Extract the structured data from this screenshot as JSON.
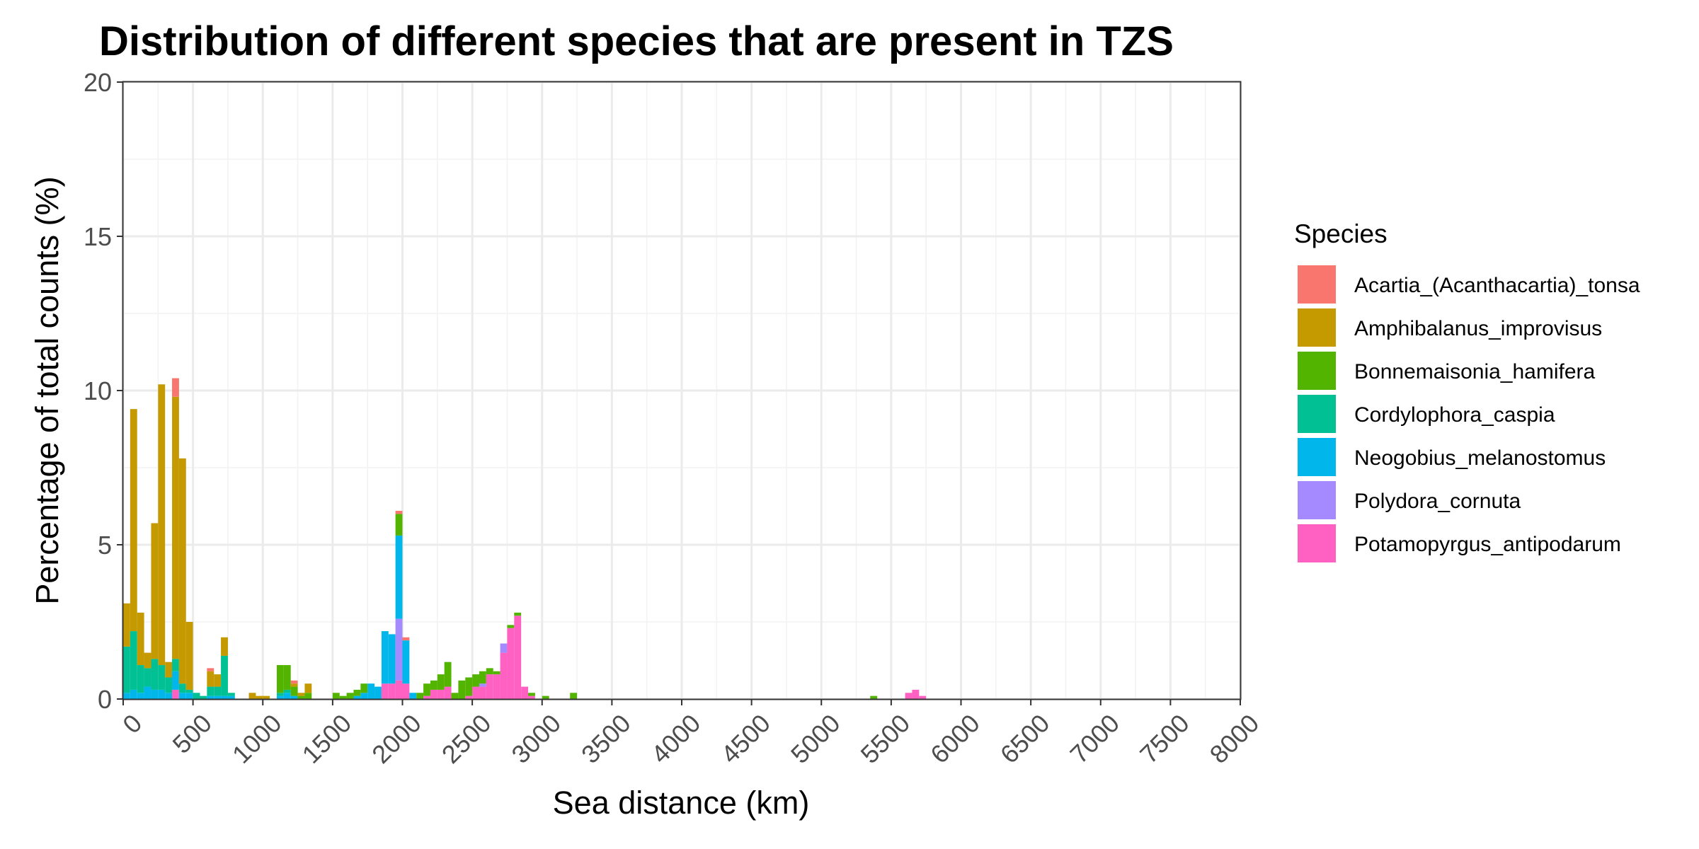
{
  "chart_data": {
    "type": "bar",
    "stacked": true,
    "title": "Distribution of different species that are present in TZS",
    "xlabel": "Sea distance (km)",
    "ylabel": "Percentage of total counts (%)",
    "xlim": [
      0,
      8000
    ],
    "ylim": [
      0,
      20
    ],
    "bin_width_km": 50,
    "x_ticks": [
      "0",
      "500",
      "1000",
      "1500",
      "2000",
      "2500",
      "3000",
      "3500",
      "4000",
      "4500",
      "5000",
      "5500",
      "6000",
      "6500",
      "7000",
      "7500",
      "8000"
    ],
    "y_ticks": [
      "0",
      "5",
      "10",
      "15",
      "20"
    ],
    "grid": true,
    "legend_position": "right",
    "legend_title": "Species",
    "x": [
      25,
      75,
      125,
      175,
      225,
      275,
      325,
      375,
      425,
      475,
      525,
      575,
      625,
      675,
      725,
      775,
      825,
      875,
      925,
      975,
      1025,
      1075,
      1125,
      1175,
      1225,
      1275,
      1325,
      1525,
      1575,
      1625,
      1675,
      1725,
      1775,
      1825,
      1875,
      1925,
      1975,
      2025,
      2075,
      2125,
      2175,
      2225,
      2275,
      2325,
      2375,
      2425,
      2475,
      2525,
      2575,
      2625,
      2675,
      2725,
      2775,
      2825,
      2875,
      2925,
      2975,
      3025,
      3225,
      5375,
      5625,
      5675,
      5725,
      5775
    ],
    "series": [
      {
        "name": "Potamopyrgus_antipodarum",
        "color": "#FF61C3",
        "values": [
          0,
          0,
          0,
          0,
          0,
          0,
          0,
          0.3,
          0,
          0,
          0,
          0,
          0,
          0,
          0,
          0,
          0,
          0,
          0,
          0,
          0,
          0,
          0,
          0,
          0,
          0,
          0,
          0,
          0,
          0,
          0,
          0,
          0,
          0,
          0.5,
          0.5,
          0.6,
          0.5,
          0,
          0,
          0.1,
          0.3,
          0.3,
          0.4,
          0,
          0,
          0.1,
          0.4,
          0.4,
          0.8,
          0.8,
          1.5,
          2.3,
          2.7,
          0.4,
          0.1,
          0,
          0,
          0,
          0,
          0.2,
          0.3,
          0.1,
          0
        ]
      },
      {
        "name": "Polydora_cornuta",
        "color": "#A58AFF",
        "values": [
          0,
          0,
          0,
          0,
          0,
          0,
          0,
          0,
          0,
          0,
          0,
          0,
          0,
          0,
          0,
          0,
          0,
          0,
          0,
          0,
          0,
          0,
          0,
          0,
          0,
          0,
          0,
          0,
          0,
          0,
          0,
          0,
          0,
          0,
          0,
          0,
          2.0,
          0,
          0,
          0,
          0,
          0,
          0,
          0,
          0,
          0,
          0,
          0,
          0.1,
          0,
          0,
          0.3,
          0,
          0,
          0,
          0,
          0,
          0,
          0,
          0,
          0,
          0,
          0,
          0
        ]
      },
      {
        "name": "Neogobius_melanostomus",
        "color": "#00B6EB",
        "values": [
          0.2,
          0.3,
          0.2,
          0.4,
          0.3,
          0.3,
          0.2,
          0.6,
          0.2,
          0.2,
          0,
          0,
          0.1,
          0.1,
          0.1,
          0.1,
          0,
          0,
          0,
          0,
          0,
          0,
          0.1,
          0.2,
          0.1,
          0,
          0,
          0,
          0,
          0,
          0.1,
          0.2,
          0.5,
          0.4,
          1.7,
          1.6,
          2.7,
          1.4,
          0.2,
          0,
          0,
          0,
          0,
          0,
          0,
          0,
          0,
          0,
          0,
          0,
          0,
          0,
          0,
          0,
          0,
          0,
          0,
          0,
          0,
          0,
          0,
          0,
          0,
          0
        ]
      },
      {
        "name": "Cordylophora_caspia",
        "color": "#00C094",
        "values": [
          1.5,
          1.9,
          0.9,
          0.6,
          1.0,
          0.8,
          0.5,
          0.4,
          0.3,
          0.1,
          0.2,
          0.1,
          0.3,
          0.3,
          1.3,
          0.1,
          0,
          0,
          0,
          0,
          0,
          0,
          0.1,
          0.1,
          0,
          0,
          0,
          0,
          0,
          0,
          0,
          0,
          0,
          0,
          0,
          0,
          0,
          0,
          0,
          0,
          0,
          0,
          0,
          0,
          0,
          0,
          0,
          0,
          0,
          0,
          0,
          0,
          0,
          0,
          0,
          0,
          0,
          0,
          0,
          0,
          0,
          0,
          0,
          0
        ]
      },
      {
        "name": "Bonnemaisonia_hamifera",
        "color": "#53B400",
        "values": [
          0,
          0,
          0,
          0,
          0,
          0,
          0,
          0,
          0,
          0,
          0,
          0,
          0,
          0,
          0,
          0,
          0,
          0,
          0,
          0,
          0,
          0,
          0.9,
          0.8,
          0.3,
          0.1,
          0.2,
          0.2,
          0.1,
          0.2,
          0.2,
          0.3,
          0,
          0,
          0,
          0,
          0.7,
          0,
          0,
          0.2,
          0.4,
          0.3,
          0.5,
          0.8,
          0.2,
          0.6,
          0.6,
          0.4,
          0.4,
          0.2,
          0.1,
          0,
          0.1,
          0.1,
          0,
          0.1,
          0,
          0.1,
          0.2,
          0.1,
          0,
          0,
          0,
          0
        ]
      },
      {
        "name": "Amphibalanus_improvisus",
        "color": "#C49A00",
        "values": [
          1.4,
          7.2,
          1.7,
          0.5,
          4.4,
          9.1,
          0.5,
          8.5,
          7.3,
          2.2,
          0,
          0,
          0.5,
          0.4,
          0.6,
          0,
          0,
          0,
          0.2,
          0.1,
          0.1,
          0,
          0,
          0,
          0.1,
          0.1,
          0.3,
          0,
          0,
          0,
          0,
          0,
          0,
          0,
          0,
          0,
          0,
          0,
          0,
          0,
          0,
          0,
          0,
          0,
          0,
          0,
          0,
          0,
          0,
          0,
          0,
          0,
          0,
          0,
          0,
          0,
          0,
          0,
          0,
          0,
          0,
          0,
          0,
          0
        ]
      },
      {
        "name": "Acartia_(Acanthacartia)_tonsa",
        "color": "#F8766D",
        "values": [
          0,
          0,
          0,
          0,
          0,
          0,
          0,
          0.6,
          0,
          0,
          0,
          0,
          0.1,
          0,
          0,
          0,
          0,
          0,
          0,
          0,
          0,
          0,
          0,
          0,
          0.1,
          0,
          0,
          0,
          0,
          0,
          0,
          0,
          0,
          0,
          0,
          0,
          0.1,
          0.1,
          0,
          0,
          0,
          0,
          0,
          0,
          0,
          0,
          0,
          0,
          0,
          0,
          0,
          0,
          0,
          0,
          0,
          0,
          0,
          0,
          0,
          0,
          0,
          0,
          0,
          0
        ]
      }
    ],
    "legend_entries": [
      {
        "name": "Acartia_(Acanthacartia)_tonsa",
        "color": "#F8766D"
      },
      {
        "name": "Amphibalanus_improvisus",
        "color": "#C49A00"
      },
      {
        "name": "Bonnemaisonia_hamifera",
        "color": "#53B400"
      },
      {
        "name": "Cordylophora_caspia",
        "color": "#00C094"
      },
      {
        "name": "Neogobius_melanostomus",
        "color": "#00B6EB"
      },
      {
        "name": "Polydora_cornuta",
        "color": "#A58AFF"
      },
      {
        "name": "Potamopyrgus_antipodarum",
        "color": "#FF61C3"
      }
    ]
  }
}
